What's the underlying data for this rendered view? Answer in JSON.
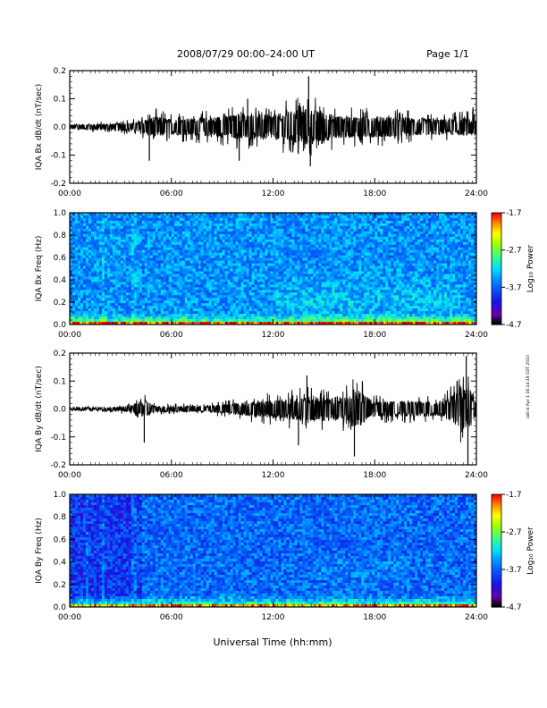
{
  "header": {
    "title": "2008/07/29  00:00–24:00 UT",
    "page": "Page 1/1"
  },
  "side_note": "adi I4 Apr 1 16:14:18 EDT 2010",
  "xlabel": "Universal Time (hh:mm)",
  "chart_data": [
    {
      "type": "line",
      "ylabel": "IQA Bx dB/dt (nT/sec)",
      "x_ticks": [
        "00:00",
        "06:00",
        "12:00",
        "18:00",
        "24:00"
      ],
      "y_ticks": [
        "0.2",
        "0.1",
        "0.0",
        "-0.1",
        "-0.2"
      ],
      "xlim": [
        0,
        24
      ],
      "ylim": [
        -0.2,
        0.2
      ],
      "series": [
        {
          "envelope_x": [
            0,
            2,
            4,
            5,
            6,
            8,
            10,
            12,
            14,
            16,
            18,
            20,
            22,
            24
          ],
          "envelope_y": [
            0.015,
            0.02,
            0.03,
            0.07,
            0.05,
            0.06,
            0.08,
            0.08,
            0.12,
            0.07,
            0.07,
            0.06,
            0.05,
            0.06
          ]
        }
      ],
      "spikes": [
        {
          "x": 4.7,
          "y": -0.12
        },
        {
          "x": 14.1,
          "y": 0.18
        },
        {
          "x": 14.2,
          "y": -0.14
        },
        {
          "x": 10.0,
          "y": -0.12
        },
        {
          "x": 10.5,
          "y": 0.1
        },
        {
          "x": 23.8,
          "y": 0.07
        }
      ]
    },
    {
      "type": "heatmap",
      "ylabel": "IQA Bx Freq (Hz)",
      "x_ticks": [
        "00:00",
        "06:00",
        "12:00",
        "18:00",
        "24:00"
      ],
      "y_ticks": [
        "1.0",
        "0.8",
        "0.6",
        "0.4",
        "0.2",
        "0.0"
      ],
      "xlim": [
        0,
        24
      ],
      "ylim": [
        0,
        1.0
      ],
      "colorbar": {
        "label": "Log₁₀ Power",
        "ticks": [
          "-1.7",
          "-2.7",
          "-3.7",
          "-4.7"
        ],
        "range": [
          -4.7,
          -1.7
        ]
      }
    },
    {
      "type": "line",
      "ylabel": "IQA By dB/dt (nT/sec)",
      "x_ticks": [
        "00:00",
        "06:00",
        "12:00",
        "18:00",
        "24:00"
      ],
      "y_ticks": [
        "0.2",
        "0.1",
        "0.0",
        "-0.1",
        "-0.2"
      ],
      "xlim": [
        0,
        24
      ],
      "ylim": [
        -0.2,
        0.2
      ],
      "series": [
        {
          "envelope_x": [
            0,
            2,
            3.5,
            4.5,
            5,
            8,
            10,
            12,
            14,
            16,
            17,
            18,
            20,
            22,
            23.5,
            24
          ],
          "envelope_y": [
            0.01,
            0.01,
            0.02,
            0.06,
            0.02,
            0.02,
            0.04,
            0.06,
            0.08,
            0.08,
            0.12,
            0.05,
            0.05,
            0.05,
            0.15,
            0.05
          ]
        }
      ],
      "spikes": [
        {
          "x": 4.4,
          "y": -0.12
        },
        {
          "x": 16.8,
          "y": -0.17
        },
        {
          "x": 23.4,
          "y": 0.19
        },
        {
          "x": 23.5,
          "y": -0.2
        },
        {
          "x": 14.0,
          "y": 0.12
        },
        {
          "x": 13.5,
          "y": -0.13
        }
      ]
    },
    {
      "type": "heatmap",
      "ylabel": "IQA By Freq (Hz)",
      "x_ticks": [
        "00:00",
        "06:00",
        "12:00",
        "18:00",
        "24:00"
      ],
      "y_ticks": [
        "1.0",
        "0.8",
        "0.6",
        "0.4",
        "0.2",
        "0.0"
      ],
      "xlim": [
        0,
        24
      ],
      "ylim": [
        0,
        1.0
      ],
      "colorbar": {
        "label": "Log₁₀ Power",
        "ticks": [
          "-1.7",
          "-2.7",
          "-3.7",
          "-4.7"
        ],
        "range": [
          -4.7,
          -1.7
        ]
      }
    }
  ]
}
